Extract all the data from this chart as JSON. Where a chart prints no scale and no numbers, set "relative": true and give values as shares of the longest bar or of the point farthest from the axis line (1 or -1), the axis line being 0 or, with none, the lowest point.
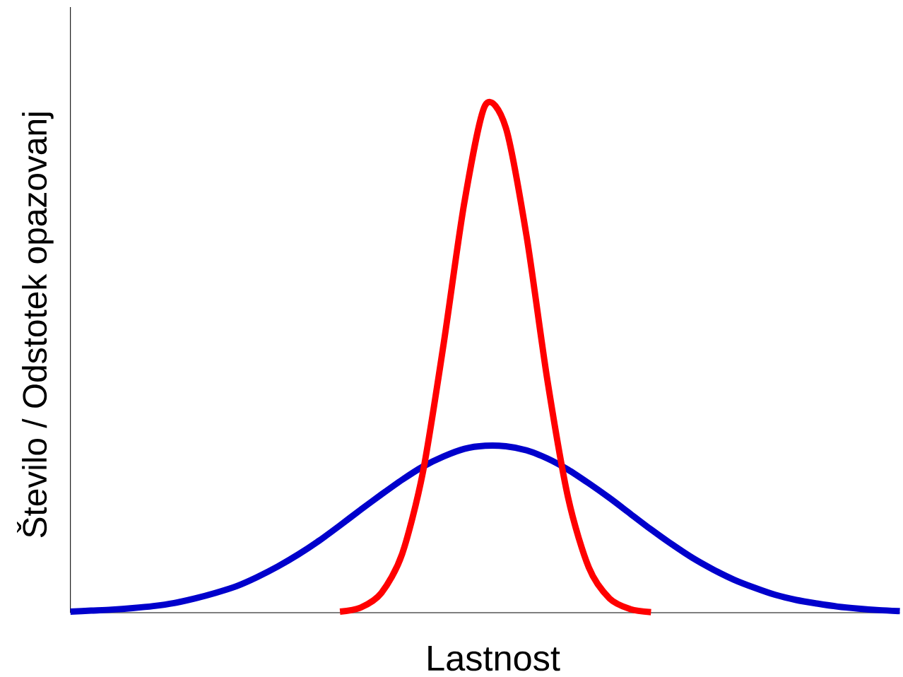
{
  "chart_data": {
    "type": "line",
    "relative": true,
    "xlabel": "Lastnost",
    "ylabel": "Število / Odstotek opazovanj",
    "line_style": "solid",
    "categories": [
      null,
      null,
      null,
      null,
      null,
      null,
      null,
      null,
      null,
      null,
      null,
      null,
      null,
      null,
      null,
      null,
      null,
      null,
      null,
      null,
      null,
      null,
      null,
      null,
      null,
      null,
      null,
      null,
      null,
      null,
      null,
      null,
      null,
      null,
      null,
      null,
      null,
      null,
      null,
      null,
      null
    ],
    "series": [
      {
        "color": "#0000cc",
        "values": [
          0.002,
          0.004,
          0.006,
          0.009,
          0.013,
          0.019,
          0.028,
          0.039,
          0.052,
          0.07,
          0.091,
          0.115,
          0.142,
          0.172,
          0.203,
          0.233,
          0.262,
          0.288,
          0.308,
          0.323,
          0.329,
          0.328,
          0.32,
          0.304,
          0.282,
          0.255,
          0.226,
          0.195,
          0.164,
          0.135,
          0.108,
          0.085,
          0.065,
          0.049,
          0.035,
          0.025,
          0.018,
          0.012,
          0.008,
          0.005,
          0.003
        ]
      },
      {
        "color": "#ff0000",
        "values": [
          null,
          null,
          null,
          null,
          null,
          null,
          null,
          null,
          null,
          null,
          null,
          null,
          null,
          0.002,
          0.01,
          0.039,
          0.116,
          0.277,
          0.53,
          0.809,
          1.0,
          0.956,
          0.742,
          0.459,
          0.227,
          0.089,
          0.028,
          0.007,
          0.001,
          null,
          null,
          null,
          null,
          null,
          null,
          null,
          null,
          null,
          null,
          null,
          null
        ]
      }
    ]
  }
}
